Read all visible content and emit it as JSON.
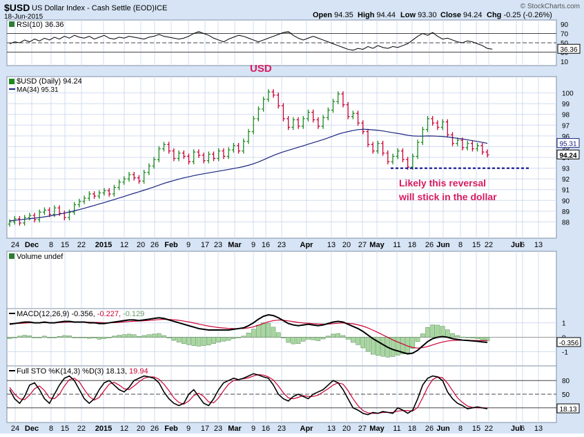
{
  "header": {
    "symbol": "$USD",
    "name": "US Dollar Index - Cash Settle (EOD)",
    "exchange": "ICE",
    "date": "18-Jun-2015",
    "watermark": "© StockCharts.com",
    "ohlc": {
      "open": "94.35",
      "high": "94.44",
      "low": "93.30",
      "close": "94.24",
      "chg": "-0.25 (-0.26%)"
    },
    "ohlc_labels": {
      "open": "Open",
      "high": "High",
      "low": "Low",
      "close": "Close",
      "chg": "Chg"
    }
  },
  "colors": {
    "up_bar": "#1f8a1f",
    "down_bar": "#cc0033",
    "ma_line": "#1a237e",
    "indicator_line": "#000000",
    "signal_line": "#cc0033",
    "histogram": "#a8d8a0",
    "annotation": "#d81b60",
    "support_line": "#00008b",
    "grid": "#d0dcef",
    "panel_bg": "#ffffff",
    "frame_bg": "#d6e4f5"
  },
  "x_axis": {
    "labels": [
      "24",
      "Dec",
      "8",
      "15",
      "22",
      "2015",
      "12",
      "20",
      "26",
      "Feb",
      "9",
      "17",
      "23",
      "Mar",
      "9",
      "16",
      "23",
      "Apr",
      "13",
      "20",
      "27",
      "May",
      "11",
      "18",
      "26",
      "Jun",
      "8",
      "15",
      "22",
      "Jul",
      "6",
      "13"
    ],
    "bold": [
      "Dec",
      "2015",
      "Feb",
      "Mar",
      "Apr",
      "May",
      "Jun",
      "Jul"
    ]
  },
  "annotations": {
    "usd_label": "USD",
    "note_line1": "Likely this reversal",
    "note_line2": "will stick in the dollar"
  },
  "chart_data": [
    {
      "type": "line",
      "title": "RSI(10) 36.36",
      "label": "RSI(10)",
      "last_value": "36.36",
      "ylim": [
        10,
        90
      ],
      "y_ticks": [
        "90",
        "70",
        "50",
        "30",
        "10"
      ],
      "reference_lines": [
        70,
        50,
        30
      ],
      "series": [
        {
          "name": "RSI(10)",
          "values": [
            48,
            52,
            50,
            56,
            52,
            58,
            54,
            60,
            56,
            62,
            58,
            64,
            60,
            66,
            62,
            60,
            64,
            58,
            62,
            66,
            60,
            58,
            62,
            60,
            64,
            62,
            60,
            58,
            62,
            64,
            68,
            64,
            62,
            60,
            58,
            60,
            64,
            70,
            74,
            70,
            66,
            60,
            56,
            52,
            58,
            62,
            66,
            64,
            60,
            56,
            52,
            56,
            60,
            64,
            68,
            72,
            74,
            66,
            60,
            56,
            60,
            64,
            60,
            56,
            52,
            48,
            44,
            40,
            36,
            34,
            38,
            36,
            42,
            38,
            44,
            40,
            38,
            42,
            40,
            44,
            48,
            56,
            64,
            70,
            66,
            72,
            64,
            58,
            60,
            56,
            52,
            50,
            54,
            52,
            48,
            44,
            38,
            36.36
          ]
        }
      ]
    },
    {
      "type": "ohlc",
      "title": "$USD (Daily) 94.24",
      "label": "$USD (Daily)",
      "last_value": "94.24",
      "ylim": [
        87,
        101
      ],
      "y_ticks": [
        100,
        99,
        98,
        97,
        96,
        95,
        94,
        93,
        92,
        91,
        90,
        89,
        88
      ],
      "ma_label": "MA(34) 95.31",
      "ma_last": "95.31",
      "close_label": "94.24",
      "support_level": 93.0,
      "closes": [
        88.0,
        88.3,
        87.9,
        88.4,
        88.6,
        88.2,
        88.9,
        89.1,
        88.7,
        89.3,
        88.8,
        88.4,
        88.9,
        89.6,
        89.9,
        90.2,
        90.6,
        90.4,
        90.7,
        90.9,
        90.6,
        91.2,
        91.7,
        92.0,
        92.4,
        92.1,
        91.8,
        92.6,
        93.2,
        93.8,
        94.8,
        95.2,
        94.6,
        93.9,
        94.4,
        94.1,
        93.6,
        94.5,
        94.2,
        93.7,
        94.3,
        93.9,
        94.6,
        94.1,
        94.7,
        95.1,
        94.6,
        95.5,
        96.4,
        97.6,
        98.5,
        99.4,
        100.1,
        99.8,
        98.8,
        97.6,
        96.8,
        97.5,
        96.9,
        97.6,
        98.2,
        97.5,
        96.9,
        97.7,
        98.4,
        99.2,
        99.9,
        98.9,
        97.8,
        98.1,
        97.2,
        96.4,
        95.2,
        94.6,
        95.3,
        94.4,
        93.6,
        94.1,
        94.6,
        93.8,
        93.1,
        94.1,
        95.4,
        96.6,
        97.6,
        97.2,
        96.8,
        97.3,
        96.1,
        95.3,
        95.6,
        94.9,
        95.3,
        94.8,
        95.1,
        94.5,
        94.24
      ],
      "ma34": [
        88.1,
        88.15,
        88.2,
        88.25,
        88.3,
        88.35,
        88.4,
        88.47,
        88.55,
        88.63,
        88.72,
        88.82,
        88.92,
        89.03,
        89.15,
        89.27,
        89.4,
        89.53,
        89.67,
        89.8,
        89.94,
        90.08,
        90.22,
        90.37,
        90.52,
        90.66,
        90.8,
        90.95,
        91.1,
        91.25,
        91.42,
        91.58,
        91.72,
        91.85,
        91.98,
        92.1,
        92.2,
        92.3,
        92.4,
        92.48,
        92.56,
        92.64,
        92.72,
        92.8,
        92.88,
        92.97,
        93.05,
        93.15,
        93.27,
        93.41,
        93.58,
        93.77,
        93.98,
        94.18,
        94.36,
        94.52,
        94.66,
        94.8,
        94.94,
        95.08,
        95.23,
        95.37,
        95.51,
        95.66,
        95.82,
        95.99,
        96.16,
        96.29,
        96.4,
        96.5,
        96.58,
        96.62,
        96.6,
        96.56,
        96.52,
        96.46,
        96.38,
        96.3,
        96.23,
        96.15,
        96.06,
        96.0,
        95.98,
        95.98,
        96.0,
        95.99,
        95.97,
        95.95,
        95.9,
        95.84,
        95.78,
        95.71,
        95.64,
        95.56,
        95.48,
        95.4,
        95.31
      ]
    },
    {
      "type": "bar",
      "title": "Volume undef",
      "label": "Volume undef",
      "values": []
    },
    {
      "type": "line",
      "title": "MACD(12,26,9) -0.356, -0.227, -0.129",
      "label": "MACD(12,26,9)",
      "values_text": [
        "-0.356",
        "-0.227",
        "-0.129"
      ],
      "last_value": "-0.356",
      "ylim": [
        -1.6,
        1.6
      ],
      "y_ticks": [
        "1",
        "0",
        "-1"
      ],
      "series": [
        {
          "name": "MACD",
          "values": [
            0.9,
            0.95,
            1.0,
            1.05,
            1.05,
            1.0,
            1.0,
            1.05,
            1.0,
            1.0,
            1.05,
            1.1,
            1.1,
            1.05,
            1.05,
            1.05,
            1.0,
            1.0,
            0.95,
            0.95,
            1.0,
            1.05,
            1.1,
            1.15,
            1.2,
            1.2,
            1.15,
            1.2,
            1.25,
            1.3,
            1.35,
            1.3,
            1.2,
            1.1,
            1.0,
            0.9,
            0.8,
            0.7,
            0.6,
            0.55,
            0.5,
            0.5,
            0.5,
            0.5,
            0.5,
            0.55,
            0.6,
            0.65,
            0.8,
            1.0,
            1.25,
            1.45,
            1.55,
            1.5,
            1.35,
            1.15,
            0.95,
            0.85,
            0.8,
            0.85,
            0.9,
            0.85,
            0.8,
            0.85,
            0.95,
            1.05,
            1.1,
            1.05,
            0.9,
            0.75,
            0.6,
            0.4,
            0.15,
            -0.1,
            -0.3,
            -0.5,
            -0.7,
            -0.85,
            -0.95,
            -1.05,
            -1.15,
            -1.1,
            -0.9,
            -0.6,
            -0.3,
            -0.1,
            0.0,
            0.05,
            0.0,
            -0.1,
            -0.15,
            -0.2,
            -0.22,
            -0.25,
            -0.28,
            -0.32,
            -0.356
          ]
        },
        {
          "name": "Signal",
          "values": [
            0.95,
            0.95,
            0.96,
            0.98,
            1.0,
            1.0,
            1.0,
            1.01,
            1.01,
            1.01,
            1.02,
            1.04,
            1.05,
            1.05,
            1.05,
            1.05,
            1.04,
            1.03,
            1.02,
            1.0,
            1.0,
            1.01,
            1.03,
            1.06,
            1.09,
            1.11,
            1.12,
            1.14,
            1.16,
            1.19,
            1.22,
            1.24,
            1.23,
            1.21,
            1.17,
            1.12,
            1.06,
            0.99,
            0.91,
            0.84,
            0.77,
            0.72,
            0.67,
            0.64,
            0.61,
            0.6,
            0.6,
            0.61,
            0.65,
            0.72,
            0.83,
            0.95,
            1.07,
            1.15,
            1.19,
            1.18,
            1.13,
            1.08,
            1.02,
            0.99,
            0.97,
            0.94,
            0.92,
            0.91,
            0.91,
            0.94,
            0.97,
            0.99,
            0.97,
            0.93,
            0.86,
            0.77,
            0.64,
            0.49,
            0.33,
            0.16,
            -0.01,
            -0.18,
            -0.33,
            -0.47,
            -0.61,
            -0.71,
            -0.75,
            -0.72,
            -0.64,
            -0.53,
            -0.42,
            -0.33,
            -0.26,
            -0.23,
            -0.21,
            -0.21,
            -0.21,
            -0.22,
            -0.23,
            -0.23,
            -0.227
          ]
        }
      ]
    },
    {
      "type": "line",
      "title": "Full STO %K(14,3) %D(3) 18.13, 19.94",
      "label": "Full STO %K(14,3) %D(3)",
      "values_text": [
        "18.13",
        "19.94"
      ],
      "last_value": "18.13",
      "ylim": [
        0,
        100
      ],
      "y_ticks": [
        "80",
        "50",
        "20"
      ],
      "reference_lines": [
        80,
        50,
        20
      ],
      "series": [
        {
          "name": "%K",
          "values": [
            60,
            40,
            30,
            45,
            70,
            75,
            60,
            40,
            30,
            50,
            70,
            85,
            90,
            80,
            60,
            40,
            30,
            40,
            60,
            75,
            80,
            70,
            60,
            55,
            65,
            80,
            85,
            90,
            88,
            85,
            75,
            55,
            40,
            30,
            25,
            30,
            50,
            60,
            45,
            30,
            25,
            40,
            60,
            75,
            80,
            85,
            82,
            85,
            90,
            95,
            92,
            88,
            85,
            70,
            50,
            40,
            35,
            45,
            50,
            45,
            40,
            50,
            55,
            60,
            70,
            80,
            75,
            60,
            40,
            20,
            15,
            8,
            5,
            10,
            8,
            12,
            10,
            8,
            20,
            15,
            8,
            15,
            40,
            70,
            85,
            90,
            88,
            80,
            55,
            40,
            30,
            25,
            18,
            20,
            22,
            20,
            18.13
          ]
        },
        {
          "name": "%D",
          "values": [
            65,
            50,
            40,
            38,
            48,
            62,
            68,
            58,
            42,
            40,
            50,
            68,
            82,
            85,
            77,
            60,
            45,
            37,
            43,
            58,
            72,
            76,
            70,
            62,
            60,
            68,
            77,
            85,
            88,
            88,
            83,
            72,
            58,
            42,
            32,
            28,
            35,
            47,
            52,
            45,
            33,
            31,
            42,
            58,
            72,
            80,
            82,
            84,
            86,
            90,
            93,
            92,
            88,
            81,
            68,
            53,
            42,
            40,
            43,
            47,
            45,
            45,
            48,
            55,
            62,
            70,
            75,
            72,
            58,
            40,
            25,
            14,
            9,
            8,
            8,
            10,
            10,
            10,
            13,
            14,
            14,
            13,
            21,
            42,
            65,
            82,
            88,
            86,
            74,
            58,
            42,
            32,
            24,
            21,
            20,
            20,
            19.94
          ]
        }
      ]
    }
  ]
}
